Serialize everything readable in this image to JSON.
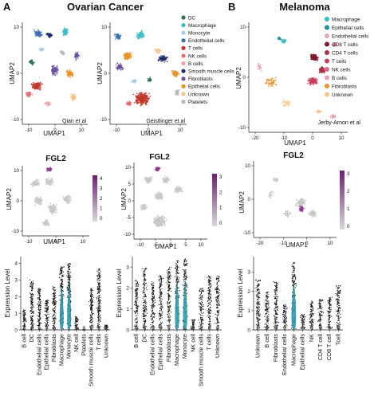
{
  "panels": {
    "A": {
      "letter": "A",
      "title": "Ovarian Cancer",
      "umap_left": {
        "caption": "Qian et al",
        "xlabel": "UMAP1",
        "ylabel": "UMAP2",
        "xticks": [
          "-10",
          "0",
          "10"
        ],
        "yticks": [
          "10",
          "0",
          "-10"
        ]
      },
      "umap_right": {
        "caption": "Geistlinger et al",
        "xlabel": "UMAP1",
        "ylabel": "UMAP2",
        "xticks": [
          "-10",
          "0",
          "10"
        ],
        "yticks": [
          "10",
          "0",
          "-10"
        ]
      },
      "legend": [
        {
          "label": "DC",
          "color": "#2b6d5e"
        },
        {
          "label": "Macrophage",
          "color": "#3bbdc8"
        },
        {
          "label": "Monocyte",
          "color": "#a8c8e8"
        },
        {
          "label": "Endothelial cells",
          "color": "#3a6fb0"
        },
        {
          "label": "T cells",
          "color": "#c0392b"
        },
        {
          "label": "NK cells",
          "color": "#e87070"
        },
        {
          "label": "B cells",
          "color": "#f0a3a3"
        },
        {
          "label": "Smooth muscle cells",
          "color": "#1f2d6e"
        },
        {
          "label": "Fibroblasts",
          "color": "#6a4e9c"
        },
        {
          "label": "Epithelial cells",
          "color": "#e8922a"
        },
        {
          "label": "Unknown",
          "color": "#f4c48a"
        },
        {
          "label": "Platelets",
          "color": "#b5b5b5"
        }
      ],
      "fgl2_left": {
        "title": "FGL2",
        "xlabel": "UMAP1",
        "ylabel": "UMAP2",
        "xticks": [
          "-10",
          "0",
          "10"
        ],
        "yticks": [
          "10",
          "0",
          "-10"
        ],
        "colorbar_ticks": [
          "4",
          "3",
          "2",
          "1",
          "0"
        ]
      },
      "fgl2_right": {
        "title": "FGL2",
        "xlabel": "UMAP1",
        "ylabel": "UMAP2",
        "xticks": [
          "-10",
          "-5",
          "0",
          "5",
          "10"
        ],
        "yticks": [
          "10",
          "5",
          "0",
          "-5",
          "-10"
        ],
        "colorbar_ticks": [
          "3",
          "2",
          "1",
          "0"
        ]
      }
    },
    "B": {
      "letter": "B",
      "title": "Melanoma",
      "umap": {
        "caption": "Jerby-Arnon et al",
        "xlabel": "UMAP1",
        "ylabel": "UMAP2",
        "xticks": [
          "-20",
          "-10",
          "0",
          "10"
        ],
        "yticks": [
          "10",
          "0",
          "-10"
        ]
      },
      "legend": [
        {
          "label": "Macrophage",
          "color": "#3bbdc8"
        },
        {
          "label": "Epithelial cells",
          "color": "#1e8f8f"
        },
        {
          "label": "Endothelial cells",
          "color": "#e0a8b8"
        },
        {
          "label": "CD8 T cells",
          "color": "#7a1a2a"
        },
        {
          "label": "CD4 T cells",
          "color": "#a83048"
        },
        {
          "label": "T cells",
          "color": "#c9405a"
        },
        {
          "label": "NK cells",
          "color": "#d86f86"
        },
        {
          "label": "B cells",
          "color": "#e8a0b4"
        },
        {
          "label": "Fibroblasts",
          "color": "#e8922a"
        },
        {
          "label": "Unknown",
          "color": "#f4c48a"
        }
      ],
      "fgl2": {
        "title": "FGL2",
        "xlabel": "UMAP1",
        "ylabel": "UMAP2",
        "xticks": [
          "-20",
          "-10",
          "0",
          "10"
        ],
        "yticks": [
          "10",
          "0",
          "-10"
        ],
        "colorbar_ticks": [
          "3",
          "2",
          "1",
          "0"
        ]
      }
    }
  },
  "chart_data": [
    {
      "type": "violin",
      "ylabel": "Expression Level",
      "yticks": [
        "0",
        "1",
        "2",
        "3",
        "4"
      ],
      "ylim": [
        0,
        4.4
      ],
      "categories": [
        "B cell",
        "DC",
        "Endothelial cells",
        "Epithelial cells",
        "Fibroblasts",
        "Macrophage",
        "Monocyte",
        "NK cell",
        "Platelets",
        "Smooth muscle cells",
        "T cells",
        "Unknown"
      ],
      "values": [
        1.2,
        3.0,
        2.5,
        1.8,
        2.6,
        3.8,
        4.0,
        0.8,
        0,
        2.5,
        3.7,
        0.3
      ],
      "highlight": [
        "Macrophage",
        "Monocyte"
      ]
    },
    {
      "type": "violin",
      "ylabel": "Expression Level",
      "yticks": [
        "0",
        "1",
        "2",
        "3"
      ],
      "ylim": [
        0,
        3.5
      ],
      "categories": [
        "B cell",
        "DC",
        "Endothelial cells",
        "Epithelial cells",
        "Fibroblasts",
        "Macrophage",
        "Monocyte",
        "NK cell",
        "Smooth muscle cells",
        "T cells",
        "Unknown"
      ],
      "values": [
        2.4,
        3.0,
        2.3,
        2.6,
        3.0,
        3.3,
        3.4,
        0.5,
        2.0,
        2.6,
        2.6
      ],
      "highlight": [
        "Macrophage",
        "Monocyte"
      ]
    },
    {
      "type": "violin",
      "ylabel": "Expression Level",
      "yticks": [
        "0",
        "1",
        "2",
        "3"
      ],
      "ylim": [
        0,
        3.8
      ],
      "categories": [
        "Unknown",
        "B cell",
        "Fibroblasts",
        "Endothelial cells",
        "Macrophage",
        "Epithelial cells",
        "NK",
        "CD4 T cell",
        "CD8 T cell",
        "Tcell"
      ],
      "values": [
        2.6,
        2.0,
        2.5,
        1.3,
        3.5,
        0.8,
        1.5,
        1.6,
        1.7,
        2.3
      ],
      "highlight": [
        "Macrophage"
      ]
    }
  ]
}
